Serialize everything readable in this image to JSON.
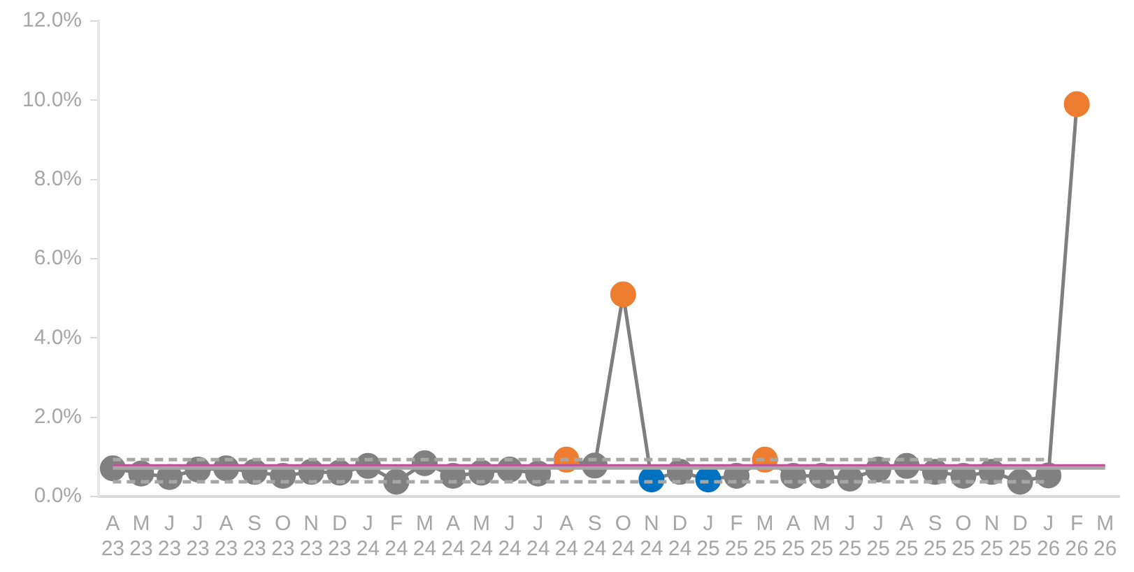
{
  "chart_data": {
    "type": "line",
    "categories": [
      "A\n23",
      "M\n23",
      "J\n23",
      "J\n23",
      "A\n23",
      "S\n23",
      "O\n23",
      "N\n23",
      "D\n23",
      "J\n24",
      "F\n24",
      "M\n24",
      "A\n24",
      "M\n24",
      "J\n24",
      "J\n24",
      "A\n24",
      "S\n24",
      "O\n24",
      "N\n24",
      "D\n24",
      "J\n25",
      "F\n25",
      "M\n25",
      "A\n25",
      "M\n25",
      "J\n25",
      "J\n25",
      "A\n25",
      "S\n25",
      "O\n25",
      "N\n25",
      "D\n25",
      "J\n26",
      "F\n26",
      "M\n26"
    ],
    "ylim": [
      0,
      12
    ],
    "yticks": [
      {
        "value": 0,
        "label": "0.0%"
      },
      {
        "value": 2,
        "label": "2.0%"
      },
      {
        "value": 4,
        "label": "4.0%"
      },
      {
        "value": 6,
        "label": "6.0%"
      },
      {
        "value": 8,
        "label": "8.0%"
      },
      {
        "value": 10,
        "label": "10.0%"
      },
      {
        "value": 12,
        "label": "12.0%"
      }
    ],
    "grid": false,
    "legend": false,
    "series": [
      {
        "color": "#a6a6a6",
        "line_style": "dashed",
        "marker": "none",
        "values": [
          0.93,
          0.93,
          0.93,
          0.93,
          0.93,
          0.93,
          0.93,
          0.93,
          0.93,
          0.93,
          0.93,
          0.93,
          0.93,
          0.93,
          0.93,
          0.93,
          0.93,
          0.93,
          0.93,
          0.93,
          0.93,
          0.93,
          0.93,
          0.93,
          0.93,
          0.93,
          0.93,
          0.93,
          0.93,
          0.93,
          0.93,
          0.93,
          0.93,
          0.93,
          null,
          null
        ]
      },
      {
        "color": "#a6a6a6",
        "line_style": "dashed",
        "marker": "none",
        "values": [
          0.37,
          0.37,
          0.37,
          0.37,
          0.37,
          0.37,
          0.37,
          0.37,
          0.37,
          0.37,
          0.37,
          0.37,
          0.37,
          0.37,
          0.37,
          0.37,
          0.37,
          0.37,
          0.37,
          0.37,
          0.37,
          0.37,
          0.37,
          0.37,
          0.37,
          0.37,
          0.37,
          0.37,
          0.37,
          0.37,
          0.37,
          0.37,
          0.37,
          0.37,
          null,
          null
        ]
      },
      {
        "color": "#a6a6a6",
        "line_style": "solid",
        "marker": "none",
        "values": [
          0.72,
          0.72,
          0.72,
          0.72,
          0.72,
          0.72,
          0.72,
          0.72,
          0.72,
          0.72,
          0.72,
          0.72,
          0.72,
          0.72,
          0.72,
          0.72,
          0.72,
          0.72,
          0.72,
          0.72,
          0.72,
          0.72,
          0.72,
          0.72,
          0.72,
          0.72,
          0.72,
          0.72,
          0.72,
          0.72,
          0.72,
          0.72,
          0.72,
          0.72,
          0.72,
          0.72
        ]
      },
      {
        "color": "#c0509a",
        "line_style": "solid",
        "marker": "none",
        "values": [
          0.77,
          0.77,
          0.77,
          0.77,
          0.77,
          0.77,
          0.77,
          0.77,
          0.77,
          0.77,
          0.77,
          0.77,
          0.77,
          0.77,
          0.77,
          0.77,
          0.77,
          0.77,
          0.77,
          0.77,
          0.77,
          0.77,
          0.77,
          0.77,
          0.77,
          0.77,
          0.77,
          0.77,
          0.77,
          0.77,
          0.77,
          0.77,
          0.77,
          0.77,
          0.77,
          0.77
        ]
      },
      {
        "color": "#7f7f7f",
        "line_style": "solid",
        "marker": "circle",
        "values": [
          0.71,
          0.58,
          0.49,
          0.68,
          0.71,
          0.62,
          0.52,
          0.62,
          0.6,
          0.77,
          0.37,
          0.84,
          0.52,
          0.6,
          0.68,
          0.58,
          0.93,
          0.78,
          5.1,
          0.43,
          0.62,
          0.43,
          0.52,
          0.93,
          0.52,
          0.52,
          0.45,
          0.68,
          0.77,
          0.62,
          0.52,
          0.62,
          0.37,
          0.53,
          9.9,
          null
        ],
        "colors": [
          "#808080",
          "#808080",
          "#808080",
          "#808080",
          "#808080",
          "#808080",
          "#808080",
          "#808080",
          "#808080",
          "#808080",
          "#808080",
          "#808080",
          "#808080",
          "#808080",
          "#808080",
          "#808080",
          "#ed7d31",
          "#808080",
          "#ed7d31",
          "#0070c0",
          "#808080",
          "#0070c0",
          "#808080",
          "#ed7d31",
          "#808080",
          "#808080",
          "#808080",
          "#808080",
          "#808080",
          "#808080",
          "#808080",
          "#808080",
          "#808080",
          "#808080",
          "#ed7d31",
          "#808080"
        ]
      }
    ]
  }
}
